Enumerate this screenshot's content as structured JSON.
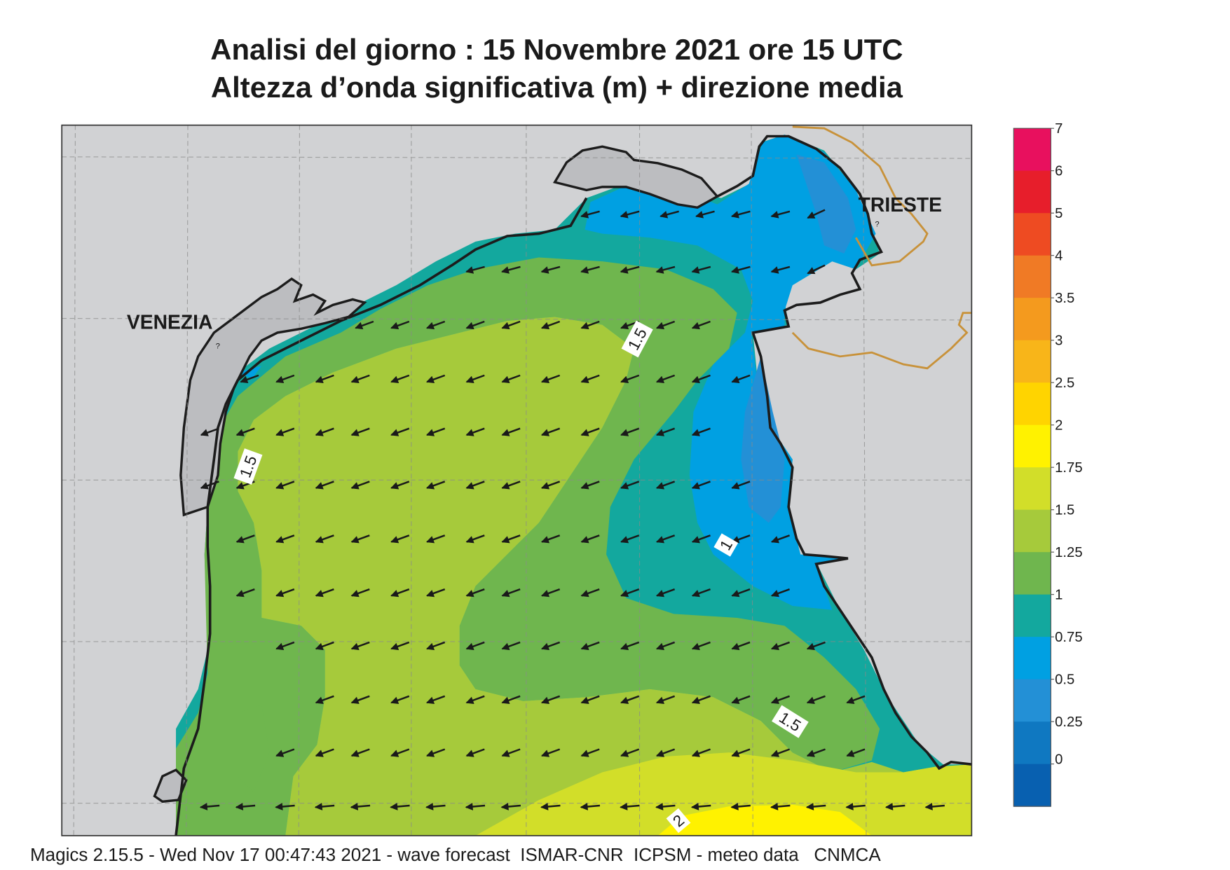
{
  "title": {
    "line1": "Analisi del giorno :  15 Novembre  2021   ore 15 UTC",
    "line2": "Altezza d’onda significativa (m) + direzione media"
  },
  "footer": "Magics 2.15.5 - Wed Nov 17 00:47:43 2021 - wave forecast  ISMAR-CNR  ICPSM - meteo data   CNMCA",
  "places": {
    "venezia": "VENEZIA",
    "trieste": "TRIESTE"
  },
  "contour_labels": [
    "1.5",
    "1.5",
    "1",
    "1.5",
    "2"
  ],
  "legend": {
    "ticks": [
      "7",
      "6",
      "5",
      "4",
      "3.5",
      "3",
      "2.5",
      "2",
      "1.75",
      "1.5",
      "1.25",
      "1",
      "0.75",
      "0.5",
      "0.25",
      "0"
    ],
    "colors": [
      "#e8105e",
      "#e71e2b",
      "#ee4b22",
      "#f07a25",
      "#f49a1e",
      "#f8b519",
      "#ffd400",
      "#fff200",
      "#d2de29",
      "#a6ca3b",
      "#6fb64e",
      "#13a89e",
      "#00a0e2",
      "#2390d6",
      "#0f78c1",
      "#0860b0"
    ]
  },
  "colors": {
    "land": "#d1d2d4",
    "lagoon_gray": "#bcbdc0",
    "coast": "#1c1c1c",
    "border": "#c8923a",
    "arrow": "#1a1a1a"
  }
}
